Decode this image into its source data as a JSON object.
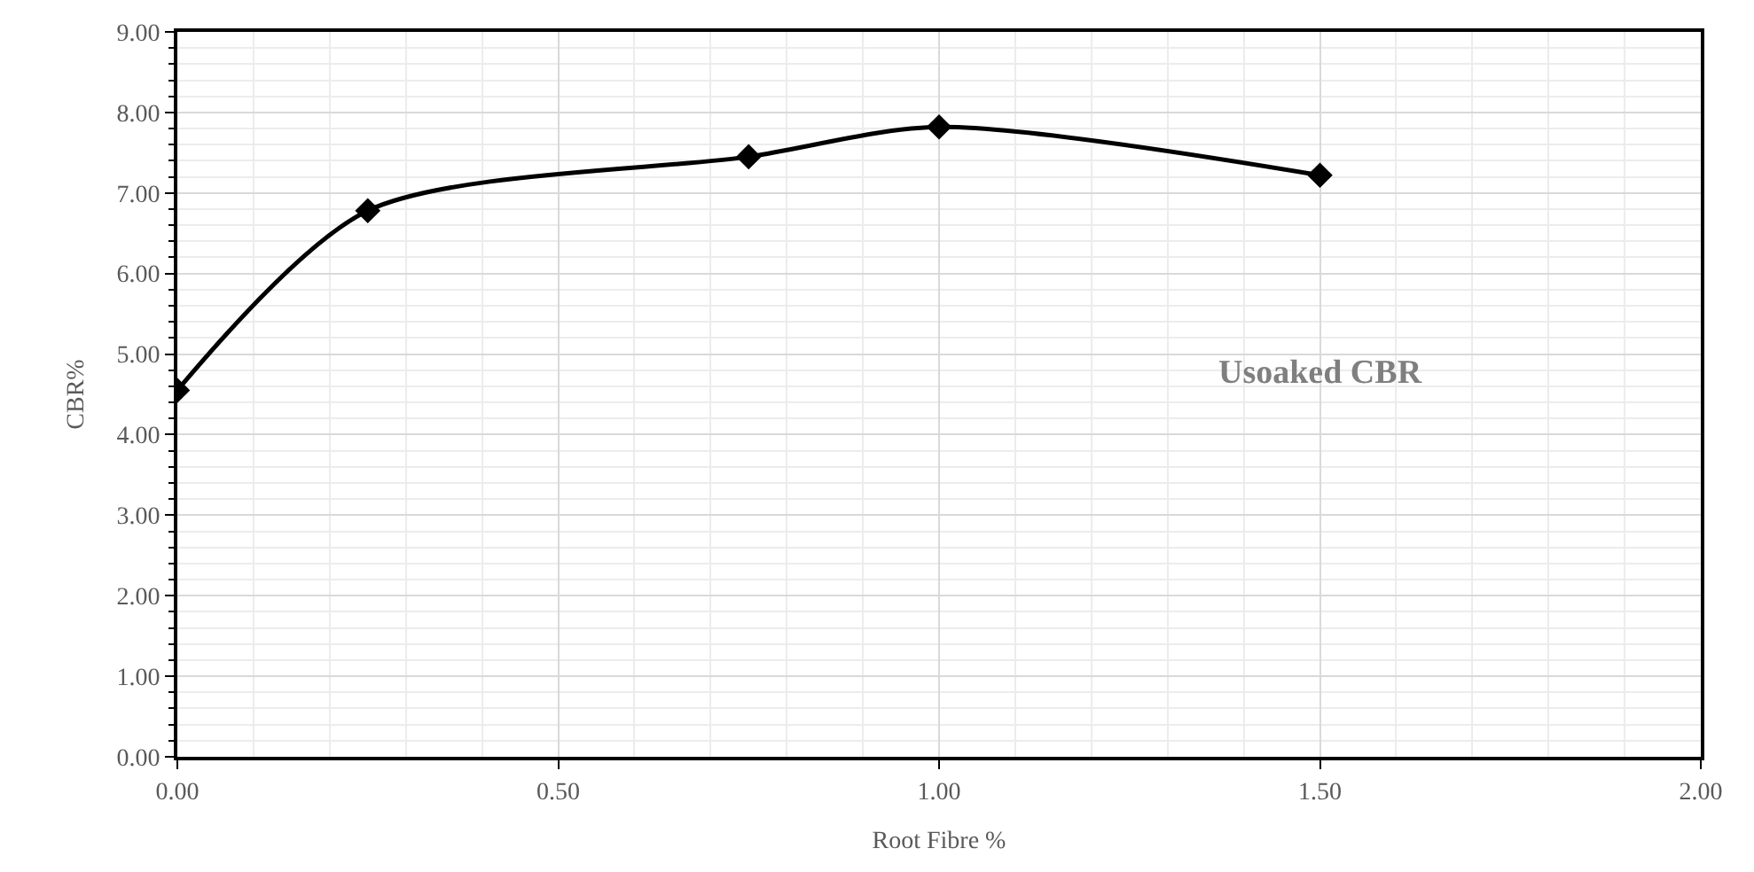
{
  "chart_data": {
    "type": "line",
    "xlabel": "Root Fibre %",
    "ylabel": "CBR%",
    "x": [
      0,
      0.25,
      0.75,
      1.0,
      1.5
    ],
    "series": [
      {
        "name": "Usoaked CBR",
        "color": "#000000",
        "values": [
          4.55,
          6.78,
          7.45,
          7.82,
          7.22
        ]
      }
    ],
    "xlim": [
      0,
      2
    ],
    "xticks": [
      {
        "value": 0,
        "label": "0.00"
      },
      {
        "value": 0.5,
        "label": "0.50"
      },
      {
        "value": 1,
        "label": "1.00"
      },
      {
        "value": 1.5,
        "label": "1.50"
      },
      {
        "value": 2,
        "label": "2.00"
      }
    ],
    "ylim": [
      0,
      9
    ],
    "yticks": [
      {
        "value": 0,
        "label": "0.00"
      },
      {
        "value": 1,
        "label": "1.00"
      },
      {
        "value": 2,
        "label": "2.00"
      },
      {
        "value": 3,
        "label": "3.00"
      },
      {
        "value": 4,
        "label": "4.00"
      },
      {
        "value": 5,
        "label": "5.00"
      },
      {
        "value": 6,
        "label": "6.00"
      },
      {
        "value": 7,
        "label": "7.00"
      },
      {
        "value": 8,
        "label": "8.00"
      },
      {
        "value": 9,
        "label": "9.00"
      }
    ],
    "grid": true,
    "marker": "diamond",
    "line_style": "solid",
    "legend": false
  }
}
